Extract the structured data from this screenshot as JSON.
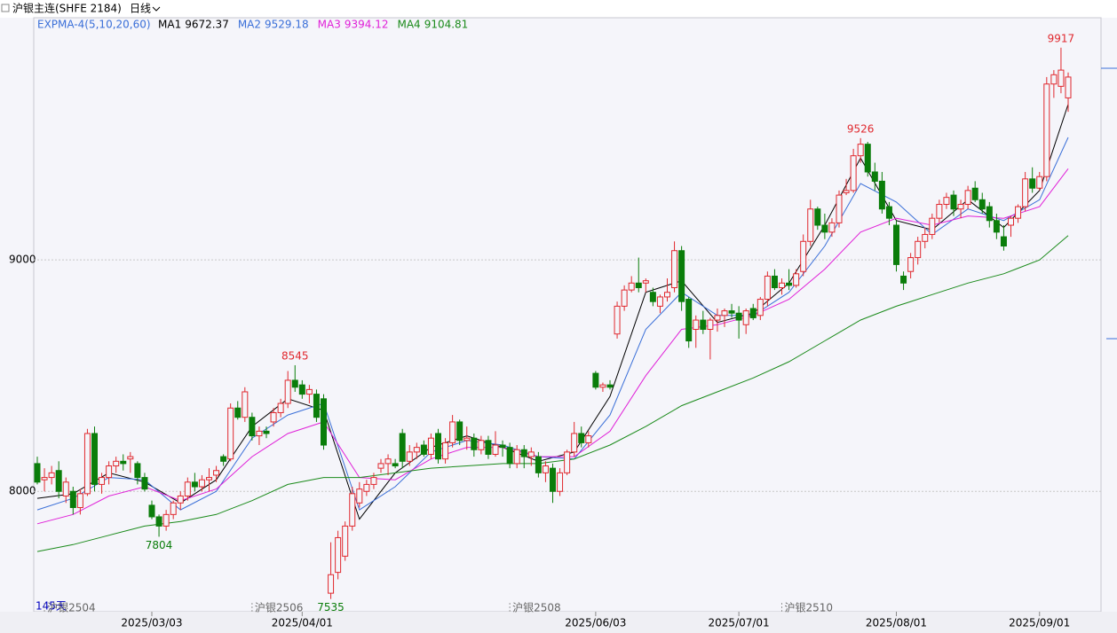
{
  "chart_data": {
    "type": "candlestick",
    "title": "沪银主连(SHFE 2184)",
    "period": "日线",
    "indicator": "EXPMA-4(5,10,20,60)",
    "count_label": "145天",
    "up_color": "#e0282e",
    "down_color": "#0a7d0a",
    "ylim": [
      7480,
      10054
    ],
    "yticks": [
      8000,
      9000
    ],
    "grid": true,
    "categories": [
      null,
      null,
      null,
      null,
      null,
      null,
      null,
      null,
      null,
      null,
      null,
      null,
      null,
      null,
      null,
      null,
      "2025/03/03",
      null,
      null,
      null,
      null,
      null,
      null,
      null,
      null,
      null,
      null,
      null,
      null,
      null,
      null,
      null,
      null,
      null,
      null,
      null,
      null,
      "2025/04/01",
      null,
      null,
      null,
      null,
      null,
      null,
      null,
      null,
      null,
      null,
      null,
      null,
      null,
      null,
      null,
      null,
      null,
      null,
      null,
      null,
      null,
      null,
      null,
      null,
      null,
      null,
      null,
      null,
      null,
      null,
      null,
      null,
      null,
      null,
      null,
      null,
      null,
      null,
      null,
      null,
      "2025/06/03",
      null,
      null,
      null,
      null,
      null,
      null,
      null,
      null,
      null,
      null,
      null,
      null,
      null,
      null,
      null,
      null,
      null,
      null,
      null,
      "2025/07/01",
      null,
      null,
      null,
      null,
      null,
      null,
      null,
      null,
      null,
      null,
      null,
      null,
      null,
      null,
      null,
      null,
      null,
      null,
      null,
      null,
      null,
      "2025/08/01",
      null,
      null,
      null,
      null,
      null,
      null,
      null,
      null,
      null,
      null,
      null,
      null,
      null,
      null,
      null,
      null,
      null,
      null,
      null,
      "2025/09/01",
      null,
      null,
      null
    ],
    "ohlc": [
      [
        8120,
        8150,
        8030,
        8040
      ],
      [
        8050,
        8100,
        8000,
        8060
      ],
      [
        8060,
        8110,
        8030,
        8080
      ],
      [
        8090,
        8130,
        7970,
        8000
      ],
      [
        7980,
        8060,
        7950,
        8040
      ],
      [
        8000,
        8020,
        7900,
        7930
      ],
      [
        7930,
        8010,
        7900,
        7990
      ],
      [
        7990,
        8270,
        7980,
        8250
      ],
      [
        8250,
        8280,
        8000,
        8030
      ],
      [
        8030,
        8080,
        7990,
        8060
      ],
      [
        8060,
        8130,
        8030,
        8110
      ],
      [
        8110,
        8150,
        8080,
        8130
      ],
      [
        8130,
        8160,
        8090,
        8120
      ],
      [
        8140,
        8170,
        8080,
        8150
      ],
      [
        8120,
        8130,
        8030,
        8060
      ],
      [
        8060,
        8080,
        8000,
        8010
      ],
      [
        7940,
        7960,
        7880,
        7890
      ],
      [
        7890,
        7900,
        7804,
        7850
      ],
      [
        7850,
        7920,
        7830,
        7900
      ],
      [
        7900,
        7960,
        7880,
        7950
      ],
      [
        7950,
        8000,
        7920,
        7980
      ],
      [
        7980,
        8060,
        7960,
        8040
      ],
      [
        8040,
        8080,
        8000,
        8020
      ],
      [
        8020,
        8070,
        8000,
        8050
      ],
      [
        8050,
        8100,
        8000,
        8060
      ],
      [
        8070,
        8110,
        8040,
        8090
      ],
      [
        8150,
        8160,
        8110,
        8130
      ],
      [
        8140,
        8380,
        8130,
        8360
      ],
      [
        8360,
        8390,
        8310,
        8320
      ],
      [
        8320,
        8450,
        8300,
        8430
      ],
      [
        8320,
        8340,
        8220,
        8240
      ],
      [
        8240,
        8280,
        8200,
        8260
      ],
      [
        8260,
        8280,
        8230,
        8250
      ],
      [
        8300,
        8360,
        8280,
        8340
      ],
      [
        8340,
        8400,
        8320,
        8380
      ],
      [
        8380,
        8520,
        8360,
        8480
      ],
      [
        8480,
        8545,
        8430,
        8450
      ],
      [
        8460,
        8480,
        8400,
        8420
      ],
      [
        8420,
        8460,
        8380,
        8440
      ],
      [
        8420,
        8440,
        8300,
        8320
      ],
      [
        8400,
        8420,
        8180,
        8200
      ],
      [
        7560,
        7780,
        7535,
        7640
      ],
      [
        7650,
        7830,
        7620,
        7800
      ],
      [
        7720,
        7870,
        7700,
        7850
      ],
      [
        7850,
        8020,
        7830,
        7990
      ],
      [
        7950,
        8040,
        7930,
        8010
      ],
      [
        8000,
        8050,
        7980,
        8030
      ],
      [
        8030,
        8080,
        8010,
        8060
      ],
      [
        8100,
        8140,
        8080,
        8120
      ],
      [
        8120,
        8160,
        8070,
        8140
      ],
      [
        8120,
        8140,
        8100,
        8110
      ],
      [
        8250,
        8270,
        8100,
        8130
      ],
      [
        8130,
        8200,
        8110,
        8170
      ],
      [
        8170,
        8210,
        8140,
        8190
      ],
      [
        8200,
        8220,
        8150,
        8160
      ],
      [
        8160,
        8250,
        8140,
        8230
      ],
      [
        8250,
        8270,
        8120,
        8140
      ],
      [
        8140,
        8230,
        8120,
        8210
      ],
      [
        8210,
        8330,
        8190,
        8300
      ],
      [
        8300,
        8310,
        8200,
        8220
      ],
      [
        8220,
        8280,
        8180,
        8230
      ],
      [
        8230,
        8250,
        8150,
        8180
      ],
      [
        8180,
        8240,
        8160,
        8220
      ],
      [
        8220,
        8240,
        8140,
        8160
      ],
      [
        8160,
        8260,
        8150,
        8200
      ],
      [
        8200,
        8220,
        8150,
        8190
      ],
      [
        8190,
        8210,
        8100,
        8120
      ],
      [
        8120,
        8200,
        8100,
        8180
      ],
      [
        8180,
        8200,
        8100,
        8150
      ],
      [
        8150,
        8190,
        8110,
        8170
      ],
      [
        8150,
        8170,
        8060,
        8080
      ],
      [
        8080,
        8130,
        8040,
        8110
      ],
      [
        8100,
        8120,
        7950,
        8000
      ],
      [
        8000,
        8100,
        7980,
        8080
      ],
      [
        8080,
        8180,
        8070,
        8170
      ],
      [
        8170,
        8300,
        8150,
        8250
      ],
      [
        8250,
        8280,
        8190,
        8210
      ],
      [
        8210,
        8260,
        8190,
        8240
      ],
      [
        8510,
        8520,
        8440,
        8450
      ],
      [
        8450,
        8470,
        8430,
        8460
      ],
      [
        8460,
        8480,
        8440,
        8450
      ],
      [
        8680,
        8820,
        8660,
        8800
      ],
      [
        8800,
        8890,
        8780,
        8870
      ],
      [
        8870,
        8930,
        8860,
        8900
      ],
      [
        8900,
        9010,
        8860,
        8880
      ],
      [
        8900,
        8920,
        8860,
        8910
      ],
      [
        8860,
        8880,
        8800,
        8820
      ],
      [
        8800,
        8850,
        8770,
        8840
      ],
      [
        8840,
        8920,
        8820,
        8860
      ],
      [
        8880,
        9080,
        8860,
        9040
      ],
      [
        9040,
        9060,
        8780,
        8820
      ],
      [
        8830,
        8840,
        8620,
        8650
      ],
      [
        8700,
        8760,
        8620,
        8740
      ],
      [
        8740,
        8780,
        8680,
        8700
      ],
      [
        8700,
        8750,
        8570,
        8740
      ],
      [
        8740,
        8790,
        8690,
        8760
      ],
      [
        8760,
        8790,
        8710,
        8780
      ],
      [
        8780,
        8810,
        8750,
        8770
      ],
      [
        8770,
        8800,
        8660,
        8740
      ],
      [
        8720,
        8790,
        8680,
        8780
      ],
      [
        8790,
        8810,
        8740,
        8750
      ],
      [
        8760,
        8840,
        8740,
        8830
      ],
      [
        8830,
        8950,
        8800,
        8930
      ],
      [
        8930,
        8960,
        8870,
        8880
      ],
      [
        8880,
        8920,
        8850,
        8900
      ],
      [
        8900,
        8960,
        8870,
        8890
      ],
      [
        8890,
        8960,
        8880,
        8940
      ],
      [
        8950,
        9110,
        8930,
        9080
      ],
      [
        9080,
        9260,
        9060,
        9220
      ],
      [
        9220,
        9230,
        9130,
        9150
      ],
      [
        9150,
        9200,
        9090,
        9120
      ],
      [
        9120,
        9180,
        9100,
        9160
      ],
      [
        9160,
        9300,
        9140,
        9280
      ],
      [
        9290,
        9350,
        9280,
        9300
      ],
      [
        9300,
        9480,
        9290,
        9450
      ],
      [
        9450,
        9526,
        9420,
        9500
      ],
      [
        9500,
        9510,
        9360,
        9380
      ],
      [
        9380,
        9420,
        9300,
        9340
      ],
      [
        9340,
        9380,
        9200,
        9220
      ],
      [
        9230,
        9250,
        9150,
        9180
      ],
      [
        9150,
        9170,
        8950,
        8980
      ],
      [
        8930,
        8950,
        8870,
        8900
      ],
      [
        8950,
        9030,
        8920,
        9010
      ],
      [
        9010,
        9100,
        8980,
        9080
      ],
      [
        9080,
        9140,
        9050,
        9110
      ],
      [
        9110,
        9200,
        9090,
        9180
      ],
      [
        9180,
        9260,
        9160,
        9240
      ],
      [
        9240,
        9290,
        9220,
        9270
      ],
      [
        9280,
        9300,
        9190,
        9220
      ],
      [
        9220,
        9260,
        9180,
        9240
      ],
      [
        9240,
        9320,
        9220,
        9300
      ],
      [
        9310,
        9340,
        9250,
        9260
      ],
      [
        9260,
        9290,
        9200,
        9220
      ],
      [
        9230,
        9250,
        9140,
        9170
      ],
      [
        9170,
        9200,
        9090,
        9120
      ],
      [
        9100,
        9150,
        9040,
        9060
      ],
      [
        9150,
        9190,
        9100,
        9180
      ],
      [
        9180,
        9240,
        9160,
        9230
      ],
      [
        9230,
        9380,
        9210,
        9350
      ],
      [
        9350,
        9400,
        9290,
        9310
      ],
      [
        9310,
        9380,
        9300,
        9360
      ],
      [
        9360,
        9790,
        9340,
        9760
      ],
      [
        9760,
        9820,
        9700,
        9800
      ],
      [
        9750,
        9917,
        9720,
        9820
      ],
      [
        9700,
        9810,
        9640,
        9790
      ]
    ],
    "series": [
      {
        "name": "MA1",
        "color": "#000000",
        "x": [
          0,
          5,
          10,
          15,
          20,
          25,
          30,
          35,
          40,
          45,
          50,
          55,
          60,
          65,
          70,
          75,
          80,
          85,
          90,
          95,
          100,
          105,
          110,
          115,
          120,
          125,
          130,
          135,
          140,
          144
        ],
        "values": [
          7970,
          7990,
          8080,
          8040,
          7950,
          8050,
          8280,
          8400,
          8350,
          7880,
          8080,
          8190,
          8240,
          8190,
          8130,
          8170,
          8410,
          8860,
          8910,
          8730,
          8770,
          8900,
          9150,
          9440,
          9170,
          9130,
          9260,
          9140,
          9300,
          9672.37
        ]
      },
      {
        "name": "MA2",
        "color": "#3a6fd8",
        "x": [
          0,
          5,
          10,
          15,
          20,
          25,
          30,
          35,
          40,
          45,
          50,
          55,
          60,
          65,
          70,
          75,
          80,
          85,
          90,
          95,
          100,
          105,
          110,
          115,
          120,
          125,
          130,
          135,
          140,
          144
        ],
        "values": [
          7920,
          7970,
          8060,
          8050,
          7920,
          8000,
          8230,
          8330,
          8380,
          7920,
          8020,
          8170,
          8220,
          8200,
          8150,
          8140,
          8330,
          8700,
          8860,
          8760,
          8760,
          8860,
          9060,
          9330,
          9250,
          9110,
          9220,
          9170,
          9260,
          9529.18
        ]
      },
      {
        "name": "MA3",
        "color": "#e020d8",
        "x": [
          0,
          5,
          10,
          15,
          20,
          25,
          30,
          35,
          40,
          45,
          50,
          55,
          60,
          65,
          70,
          75,
          80,
          85,
          90,
          95,
          100,
          105,
          110,
          115,
          120,
          125,
          130,
          135,
          140,
          144
        ],
        "values": [
          7860,
          7900,
          7980,
          8020,
          7960,
          8010,
          8150,
          8250,
          8300,
          8060,
          8050,
          8140,
          8190,
          8190,
          8150,
          8150,
          8260,
          8500,
          8700,
          8720,
          8760,
          8830,
          8960,
          9120,
          9180,
          9150,
          9190,
          9180,
          9230,
          9394.12
        ]
      },
      {
        "name": "MA4",
        "color": "#1a8a1a",
        "x": [
          0,
          5,
          10,
          15,
          20,
          25,
          30,
          35,
          40,
          45,
          50,
          55,
          60,
          65,
          70,
          75,
          80,
          85,
          90,
          95,
          100,
          105,
          110,
          115,
          120,
          125,
          130,
          135,
          140,
          144
        ],
        "values": [
          7740,
          7770,
          7810,
          7850,
          7870,
          7900,
          7960,
          8030,
          8060,
          8060,
          8080,
          8100,
          8110,
          8120,
          8120,
          8140,
          8200,
          8280,
          8370,
          8430,
          8490,
          8560,
          8650,
          8740,
          8800,
          8850,
          8900,
          8940,
          9000,
          9104.81
        ]
      }
    ],
    "annotations": [
      {
        "x": 36,
        "value": 8545,
        "color": "#e0282e"
      },
      {
        "x": 17,
        "value": 7804,
        "color": "#0a7d0a"
      },
      {
        "x": 41,
        "value": 7535,
        "color": "#0a7d0a"
      },
      {
        "x": 115,
        "value": 9526,
        "color": "#e0282e"
      },
      {
        "x": 143,
        "value": 9917,
        "color": "#e0282e"
      }
    ],
    "contracts": [
      {
        "x": 1,
        "label": "沪银2504"
      },
      {
        "x": 30,
        "label": "沪银2506"
      },
      {
        "x": 66,
        "label": "沪银2508"
      },
      {
        "x": 104,
        "label": "沪银2510"
      }
    ]
  }
}
